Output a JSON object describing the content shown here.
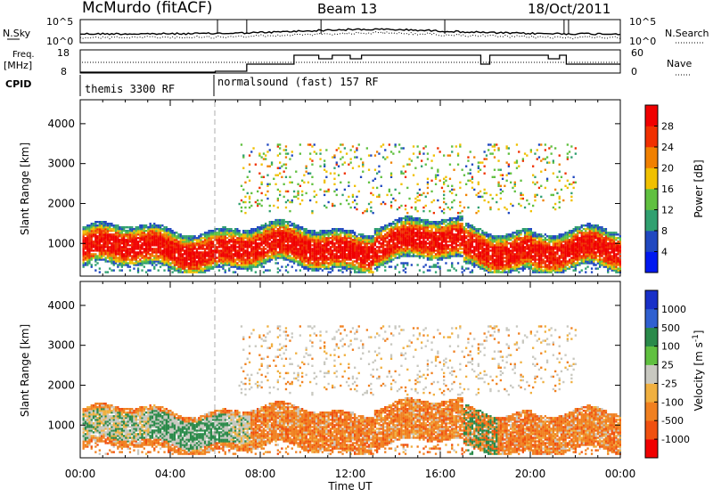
{
  "header": {
    "station": "McMurdo (fitACF)",
    "beam": "Beam 13",
    "date": "18/Oct/2011"
  },
  "noise_panel": {
    "left_label": "N.Sky",
    "right_label": "N.Search",
    "left_ticks": [
      "10^5",
      "10^0"
    ],
    "right_ticks": [
      "10^5",
      "10^0"
    ]
  },
  "freq_panel": {
    "left_label_1": "Freq.",
    "left_label_2": "[MHz]",
    "right_label": "Nave",
    "left_ticks": [
      "18",
      "8"
    ],
    "right_ticks": [
      "60",
      "0"
    ]
  },
  "cpid": {
    "label": "CPID",
    "segments": [
      {
        "name": "themis 3300 RF",
        "start_hour": 0
      },
      {
        "name": "normalsound (fast) 157 RF",
        "start_hour": 6
      }
    ]
  },
  "chart_data": [
    {
      "type": "heatmap",
      "title": "",
      "ylabel": "Slant Range [km]",
      "xlabel": "",
      "ylim": [
        180,
        4600
      ],
      "xlim_hours": [
        0,
        24
      ],
      "yticks": [
        1000,
        2000,
        3000,
        4000
      ],
      "colorbar": {
        "label": "Power [dB]",
        "ticks": [
          4,
          8,
          12,
          16,
          20,
          24,
          28
        ],
        "colors": [
          "#0018f0",
          "#2048c0",
          "#30a070",
          "#60c040",
          "#f0c000",
          "#f08000",
          "#f03000",
          "#f00000"
        ]
      }
    },
    {
      "type": "heatmap",
      "title": "",
      "ylabel": "Slant Range [km]",
      "xlabel": "Time UT",
      "ylim": [
        180,
        4600
      ],
      "xlim_hours": [
        0,
        24
      ],
      "yticks": [
        1000,
        2000,
        3000,
        4000
      ],
      "xticks": [
        "00:00",
        "04:00",
        "08:00",
        "12:00",
        "16:00",
        "20:00",
        "00:00"
      ],
      "colorbar": {
        "label": "Velocity [m s^-1]",
        "ticks": [
          "1000",
          "500",
          "100",
          "25",
          "-25",
          "-100",
          "-500",
          "-1000"
        ],
        "colors": [
          "#1830c8",
          "#3060d0",
          "#2a8a4a",
          "#60c040",
          "#c8c8c0",
          "#f0b040",
          "#f08020",
          "#f05010",
          "#f00000"
        ]
      }
    }
  ]
}
